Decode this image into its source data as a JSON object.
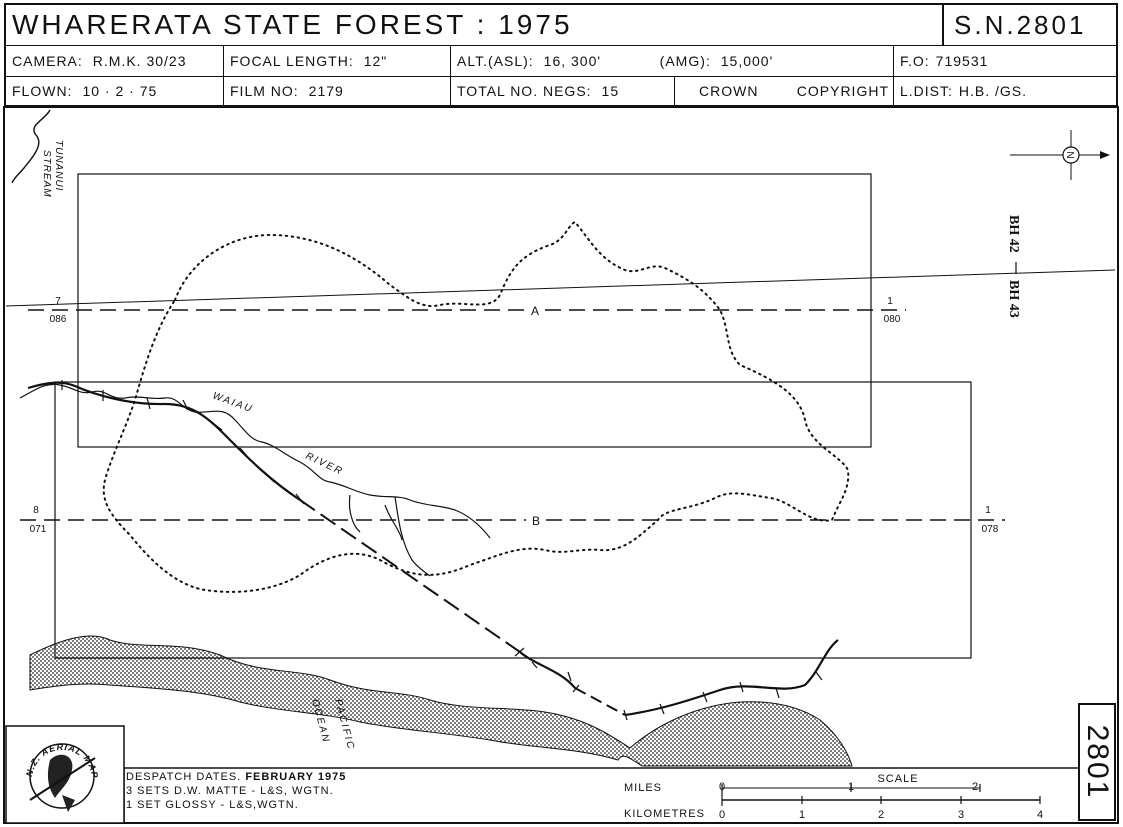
{
  "header": {
    "title": "WHARERATA STATE FOREST : 1975",
    "sn": "S.N.2801",
    "camera_label": "CAMERA:",
    "camera_value": "R.M.K. 30/23",
    "focal_label": "FOCAL LENGTH:",
    "focal_value": "12\"",
    "alt_label": "ALT.(ASL):",
    "alt_value": "16, 300'",
    "amg_label": "(AMG):",
    "amg_value": "15,000'",
    "fo_label": "F.O:",
    "fo_value": "719531",
    "flown_label": "FLOWN:",
    "flown_value": "10 · 2 · 75",
    "film_label": "FILM NO:",
    "film_value": "2179",
    "negs_label": "TOTAL NO. NEGS:",
    "negs_value": "15",
    "crown": "CROWN",
    "copyright": "COPYRIGHT",
    "ldist_label": "L.DIST:",
    "ldist_value": "H.B. /GS."
  },
  "map": {
    "stream_label_1": "TUNANUI",
    "stream_label_2": "STREAM",
    "river_label_1": "WAIAU",
    "river_label_2": "RIVER",
    "ocean_label_1": "PACIFIC",
    "ocean_label_2": "OCEAN",
    "sheet_bh42": "BH 42",
    "sheet_bh43": "BH 43",
    "north_letter": "N",
    "run_a": {
      "label": "A",
      "start_num": "7",
      "start_code": "086",
      "end_num": "1",
      "end_code": "080"
    },
    "run_b": {
      "label": "B",
      "start_num": "8",
      "start_code": "071",
      "end_num": "1",
      "end_code": "078"
    }
  },
  "logo": {
    "text": "N.Z. AERIAL MAPPING LTD"
  },
  "despatch": {
    "line1_label": "DESPATCH DATES.",
    "line1_value": "FEBRUARY 1975",
    "line2": "3 SETS D.W. MATTE - L&S, WGTN.",
    "line3": "1 SET GLOSSY - L&S,WGTN."
  },
  "scale": {
    "title": "SCALE",
    "miles_label": "MILES",
    "kilometres_label": "KILOMETRES",
    "mile_ticks": [
      "0",
      "1",
      "2"
    ],
    "km_ticks": [
      "0",
      "1",
      "2",
      "3",
      "4"
    ]
  },
  "stamp": "2801"
}
